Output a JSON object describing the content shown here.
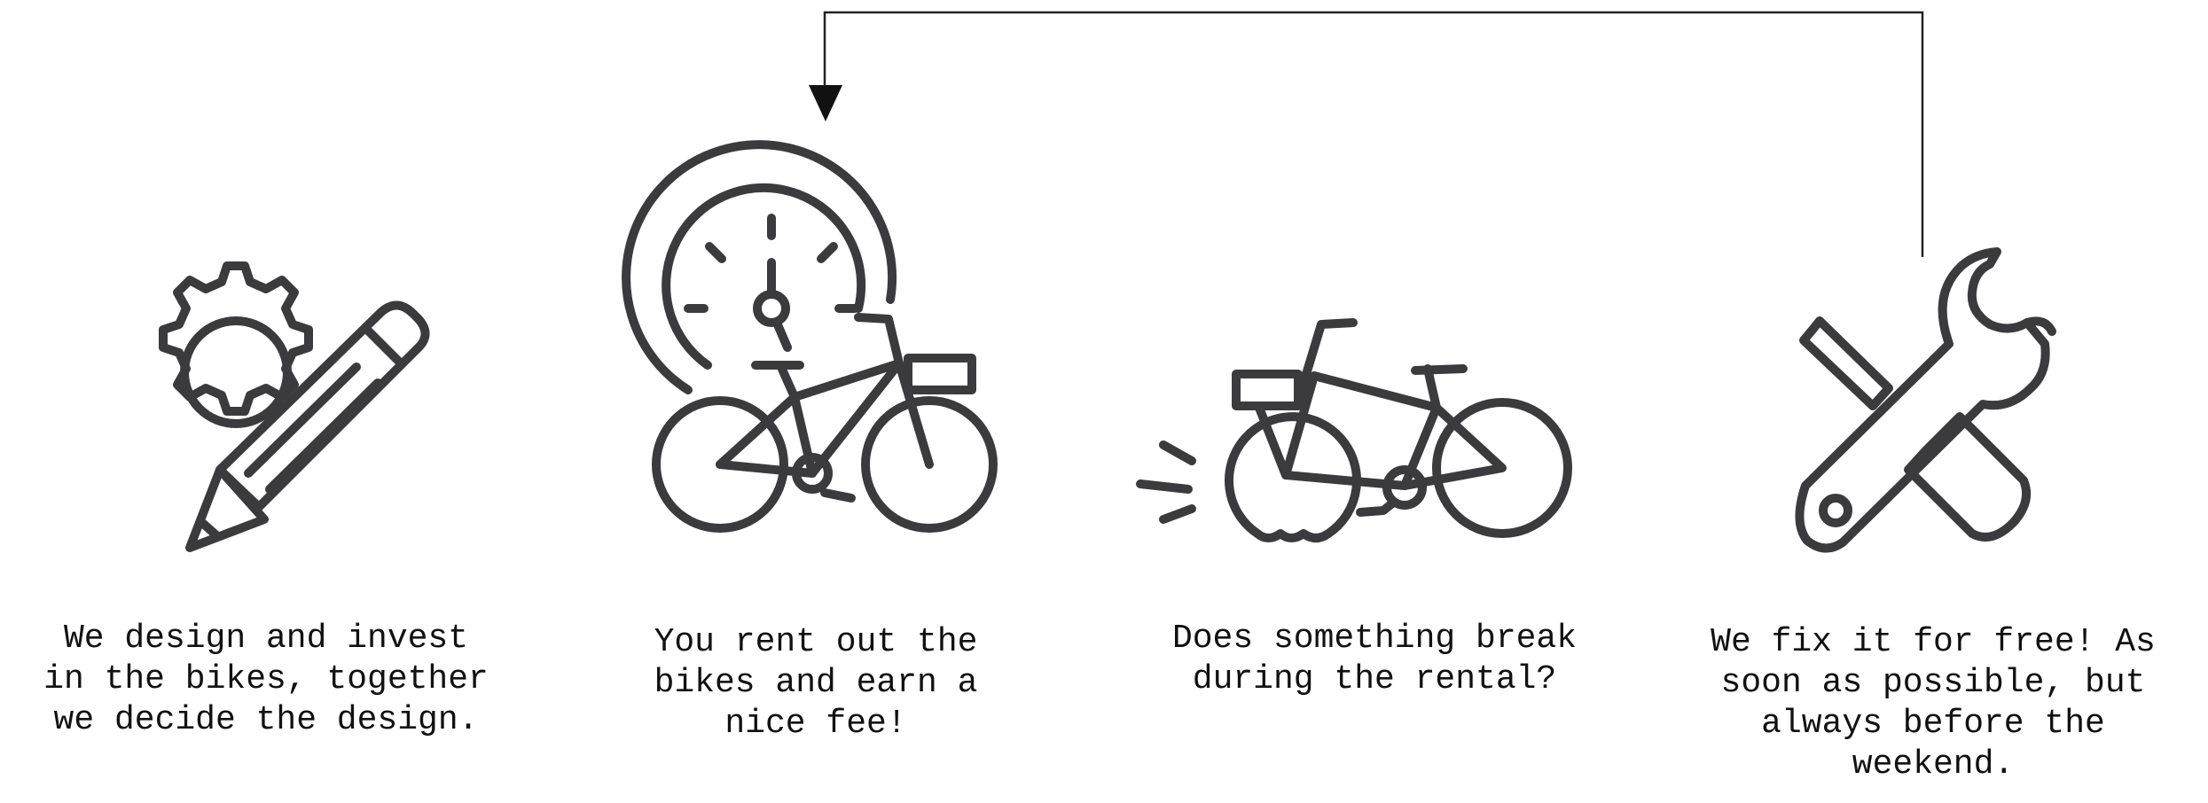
{
  "steps": [
    {
      "icon": "gear-pencil-icon",
      "caption": "We design and invest\nin the bikes, together\nwe decide the design."
    },
    {
      "icon": "bike-timer-icon",
      "caption": "You rent out the\nbikes and earn a\nnice fee!"
    },
    {
      "icon": "broken-bike-icon",
      "caption": "Does something break\nduring the rental?"
    },
    {
      "icon": "wrench-screwdriver-icon",
      "caption": "We fix it for free! As\nsoon as possible, but\nalways before the\nweekend."
    }
  ],
  "colors": {
    "icon": "#3b3b3d",
    "connector": "#222222",
    "text": "#111111"
  }
}
